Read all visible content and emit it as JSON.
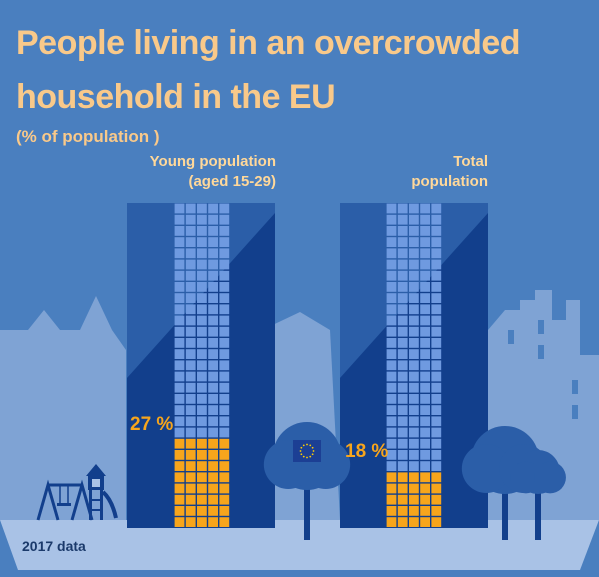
{
  "title_line1": "People living in an overcrowded",
  "title_line2": "household in the EU",
  "subtitle": "(% of population )",
  "footnote": "2017 data",
  "colors": {
    "background": "#4a7fbf",
    "skyline": "#7fa3d4",
    "ground": "#a9c2e6",
    "tower_dark": "#123f8c",
    "tower_mid": "#2b5ea8",
    "grid_cell": "#6f9ae0",
    "highlight": "#f7a51c",
    "title": "#f9c98a",
    "eu_flag": "#1c3f94",
    "eu_stars": "#ffcc00"
  },
  "icons": [
    "swing-icon",
    "slide-icon",
    "tree-icon",
    "eu-flag-icon"
  ],
  "chart_data": {
    "type": "bar",
    "title": "People living in an overcrowded household in the EU",
    "ylabel": "(% of population )",
    "ylim": [
      0,
      100
    ],
    "categories": [
      "Young population\n(aged 15-29)",
      "Total\npopulation"
    ],
    "values": [
      27,
      18
    ],
    "value_labels": [
      "27 %",
      "18 %"
    ],
    "legend": "none",
    "grid": false
  }
}
